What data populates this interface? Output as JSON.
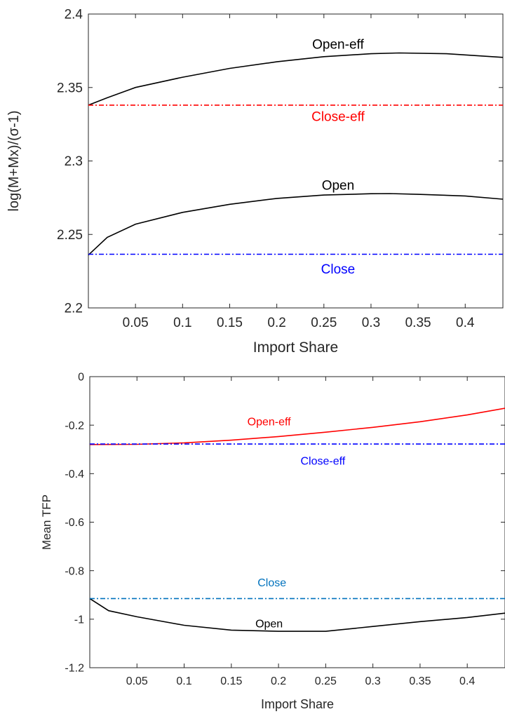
{
  "chart_data": [
    {
      "type": "line",
      "title": "",
      "xlabel": "Import Share",
      "ylabel": "log(M+Mx)/(σ-1)",
      "xlim": [
        0,
        0.44
      ],
      "ylim": [
        2.2,
        2.4
      ],
      "xticks": [
        0.05,
        0.1,
        0.15,
        0.2,
        0.25,
        0.3,
        0.35,
        0.4
      ],
      "xtick_labels": [
        "0.05",
        "0.1",
        "0.15",
        "0.2",
        "0.25",
        "0.3",
        "0.35",
        "0.4"
      ],
      "yticks": [
        2.2,
        2.25,
        2.3,
        2.35,
        2.4
      ],
      "ytick_labels": [
        "2.2",
        "2.25",
        "2.3",
        "2.35",
        "2.4"
      ],
      "grid": false,
      "series": [
        {
          "name": "Open-eff",
          "color": "#000000",
          "style": "solid",
          "x": [
            0,
            0.02,
            0.05,
            0.1,
            0.15,
            0.2,
            0.25,
            0.3,
            0.33,
            0.38,
            0.44
          ],
          "y": [
            2.338,
            2.343,
            2.35,
            2.357,
            2.363,
            2.3675,
            2.371,
            2.373,
            2.3735,
            2.373,
            2.3705
          ]
        },
        {
          "name": "Close-eff",
          "color": "#ff0000",
          "style": "dashdot",
          "x": [
            0,
            0.44
          ],
          "y": [
            2.338,
            2.338
          ]
        },
        {
          "name": "Open",
          "color": "#000000",
          "style": "solid",
          "x": [
            0,
            0.02,
            0.05,
            0.1,
            0.15,
            0.2,
            0.25,
            0.3,
            0.32,
            0.35,
            0.4,
            0.44
          ],
          "y": [
            2.236,
            2.248,
            2.257,
            2.265,
            2.2705,
            2.2745,
            2.2768,
            2.2777,
            2.2778,
            2.2773,
            2.2762,
            2.274
          ]
        },
        {
          "name": "Close",
          "color": "#0000ff",
          "style": "dashdot",
          "x": [
            0,
            0.44
          ],
          "y": [
            2.2365,
            2.2365
          ]
        }
      ],
      "annotations": [
        {
          "text": "Open-eff",
          "x": 0.265,
          "y": 2.3795,
          "color": "#000000"
        },
        {
          "text": "Close-eff",
          "x": 0.265,
          "y": 2.3305,
          "color": "#ff0000"
        },
        {
          "text": "Open",
          "x": 0.265,
          "y": 2.2835,
          "color": "#000000"
        },
        {
          "text": "Close",
          "x": 0.265,
          "y": 2.2265,
          "color": "#0000ff"
        }
      ]
    },
    {
      "type": "line",
      "title": "",
      "xlabel": "Import Share",
      "ylabel": "Mean TFP",
      "xlim": [
        0,
        0.44
      ],
      "ylim": [
        -1.2,
        0
      ],
      "xticks": [
        0.05,
        0.1,
        0.15,
        0.2,
        0.25,
        0.3,
        0.35,
        0.4
      ],
      "xtick_labels": [
        "0.05",
        "0.1",
        "0.15",
        "0.2",
        "0.25",
        "0.3",
        "0.35",
        "0.4"
      ],
      "yticks": [
        -1.2,
        -1,
        -0.8,
        -0.6,
        -0.4,
        -0.2,
        0
      ],
      "ytick_labels": [
        "-1.2",
        "-1",
        "-0.8",
        "-0.6",
        "-0.4",
        "-0.2",
        "0"
      ],
      "grid": false,
      "series": [
        {
          "name": "Open-eff",
          "color": "#ff0000",
          "style": "solid",
          "x": [
            0,
            0.05,
            0.1,
            0.15,
            0.2,
            0.25,
            0.3,
            0.35,
            0.4,
            0.44
          ],
          "y": [
            -0.28,
            -0.279,
            -0.273,
            -0.262,
            -0.247,
            -0.229,
            -0.209,
            -0.186,
            -0.158,
            -0.13
          ]
        },
        {
          "name": "Close-eff",
          "color": "#0000ff",
          "style": "dashdot",
          "x": [
            0,
            0.44
          ],
          "y": [
            -0.278,
            -0.278
          ]
        },
        {
          "name": "Open",
          "color": "#000000",
          "style": "solid",
          "x": [
            0,
            0.02,
            0.05,
            0.1,
            0.15,
            0.2,
            0.25,
            0.3,
            0.35,
            0.4,
            0.44
          ],
          "y": [
            -0.915,
            -0.965,
            -0.99,
            -1.025,
            -1.045,
            -1.05,
            -1.05,
            -1.03,
            -1.01,
            -0.993,
            -0.975
          ]
        },
        {
          "name": "Close",
          "color": "#0072bd",
          "style": "dashdot",
          "x": [
            0,
            0.44
          ],
          "y": [
            -0.915,
            -0.915
          ]
        }
      ],
      "annotations": [
        {
          "text": "Open-eff",
          "x": 0.19,
          "y": -0.185,
          "color": "#ff0000"
        },
        {
          "text": "Close-eff",
          "x": 0.247,
          "y": -0.347,
          "color": "#0000ff"
        },
        {
          "text": "Close",
          "x": 0.193,
          "y": -0.848,
          "color": "#0072bd"
        },
        {
          "text": "Open",
          "x": 0.19,
          "y": -1.017,
          "color": "#000000"
        }
      ]
    }
  ]
}
